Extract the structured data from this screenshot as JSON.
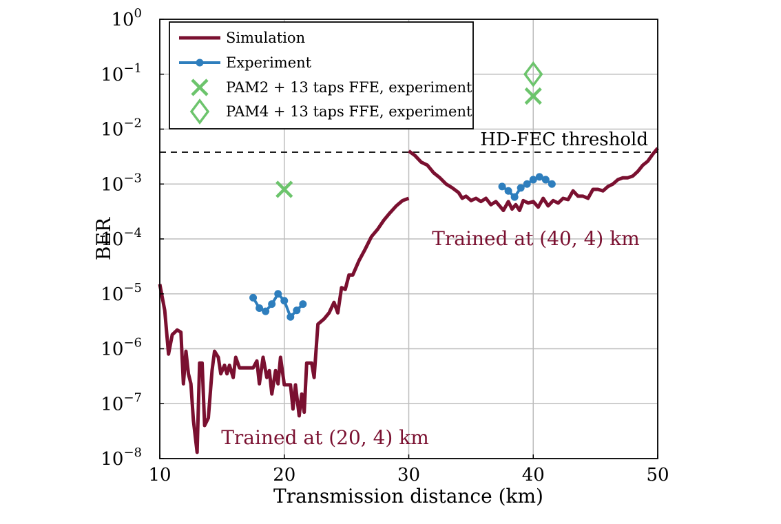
{
  "chart_data": {
    "type": "line",
    "xlabel": "Transmission distance (km)",
    "ylabel": "BER",
    "xlim": [
      10,
      50
    ],
    "ylim": [
      1e-08,
      1
    ],
    "yscale": "log",
    "grid": true,
    "legend_position": "top-left",
    "x_ticks": [
      "10",
      "20",
      "30",
      "40",
      "50"
    ],
    "y_ticks": [
      {
        "base": "10",
        "exp": "0"
      },
      {
        "base": "10",
        "exp": "−1"
      },
      {
        "base": "10",
        "exp": "−2"
      },
      {
        "base": "10",
        "exp": "−3"
      },
      {
        "base": "10",
        "exp": "−4"
      },
      {
        "base": "10",
        "exp": "−5"
      },
      {
        "base": "10",
        "exp": "−6"
      },
      {
        "base": "10",
        "exp": "−7"
      },
      {
        "base": "10",
        "exp": "−8"
      }
    ],
    "threshold": {
      "label": "HD-FEC threshold",
      "value": 0.0038
    },
    "annotations": [
      {
        "text": "Trained at (20, 4) km"
      },
      {
        "text": "Trained at (40, 4) km"
      }
    ],
    "series": [
      {
        "name": "Simulation",
        "color": "#7a1030",
        "style": "line",
        "segments": [
          [
            [
              10.0,
              1.5e-05
            ],
            [
              10.4,
              5e-06
            ],
            [
              10.7,
              8e-07
            ],
            [
              11.0,
              1.8e-06
            ],
            [
              11.4,
              2.2e-06
            ],
            [
              11.7,
              2e-06
            ],
            [
              11.9,
              2.3e-07
            ],
            [
              12.1,
              9e-07
            ],
            [
              12.3,
              3.5e-07
            ],
            [
              12.5,
              2.3e-07
            ],
            [
              12.7,
              5e-08
            ],
            [
              13.0,
              1.3e-08
            ],
            [
              13.2,
              5.5e-07
            ],
            [
              13.4,
              5.5e-07
            ],
            [
              13.6,
              4e-08
            ],
            [
              13.9,
              5.5e-08
            ],
            [
              14.2,
              4e-07
            ],
            [
              14.4,
              9e-07
            ],
            [
              14.7,
              7e-07
            ],
            [
              14.9,
              3.5e-07
            ],
            [
              15.2,
              5e-07
            ],
            [
              15.4,
              3.5e-07
            ],
            [
              15.6,
              5e-07
            ],
            [
              15.9,
              3e-07
            ],
            [
              16.1,
              7e-07
            ],
            [
              16.4,
              4.5e-07
            ],
            [
              17.5,
              4.5e-07
            ],
            [
              17.8,
              6e-07
            ],
            [
              18.0,
              2.3e-07
            ],
            [
              18.3,
              7e-07
            ],
            [
              18.6,
              3e-07
            ],
            [
              18.8,
              4e-07
            ],
            [
              19.0,
              1.5e-07
            ],
            [
              19.3,
              4e-07
            ],
            [
              19.5,
              2.3e-07
            ],
            [
              19.7,
              7e-07
            ],
            [
              20.0,
              2.2e-07
            ],
            [
              20.5,
              2.2e-07
            ],
            [
              20.7,
              8e-08
            ],
            [
              20.9,
              2.2e-07
            ],
            [
              21.2,
              6e-08
            ],
            [
              21.4,
              1.5e-07
            ],
            [
              21.6,
              7e-08
            ],
            [
              21.8,
              5.5e-07
            ],
            [
              22.2,
              5.5e-07
            ],
            [
              22.4,
              3e-07
            ],
            [
              22.7,
              2.8e-06
            ],
            [
              23.2,
              3.5e-06
            ],
            [
              23.6,
              4.5e-06
            ],
            [
              24.0,
              7e-06
            ],
            [
              24.3,
              4.5e-06
            ],
            [
              24.6,
              1.3e-05
            ],
            [
              24.9,
              1.2e-05
            ],
            [
              25.2,
              2.2e-05
            ],
            [
              25.5,
              2.2e-05
            ],
            [
              26.0,
              4e-05
            ],
            [
              26.5,
              6.5e-05
            ],
            [
              27.0,
              0.00011
            ],
            [
              27.5,
              0.00015
            ],
            [
              28.0,
              0.00022
            ],
            [
              28.5,
              0.0003
            ],
            [
              29.0,
              0.0004
            ],
            [
              29.5,
              0.0005
            ],
            [
              30.0,
              0.00055
            ]
          ],
          [
            [
              30.0,
              0.004
            ],
            [
              30.5,
              0.0033
            ],
            [
              31.0,
              0.0025
            ],
            [
              31.5,
              0.0022
            ],
            [
              32.0,
              0.0016
            ],
            [
              32.5,
              0.0013
            ],
            [
              33.0,
              0.001
            ],
            [
              33.5,
              0.00085
            ],
            [
              34.0,
              0.0007
            ],
            [
              34.3,
              0.00055
            ],
            [
              34.6,
              0.0006
            ],
            [
              35.0,
              0.0005
            ],
            [
              35.4,
              0.00055
            ],
            [
              35.8,
              0.00048
            ],
            [
              36.2,
              0.00055
            ],
            [
              36.6,
              0.00042
            ],
            [
              37.0,
              0.00048
            ],
            [
              37.3,
              0.0004
            ],
            [
              37.6,
              0.00033
            ],
            [
              38.0,
              0.00048
            ],
            [
              38.3,
              0.00035
            ],
            [
              38.6,
              0.00042
            ],
            [
              38.9,
              0.00033
            ],
            [
              39.2,
              0.0005
            ],
            [
              39.6,
              0.00045
            ],
            [
              40.0,
              0.00048
            ],
            [
              40.4,
              0.00038
            ],
            [
              40.8,
              0.00055
            ],
            [
              41.2,
              0.0004
            ],
            [
              41.6,
              0.0005
            ],
            [
              42.0,
              0.00045
            ],
            [
              42.4,
              0.00055
            ],
            [
              42.8,
              0.00052
            ],
            [
              43.2,
              0.00075
            ],
            [
              43.6,
              0.0006
            ],
            [
              44.0,
              0.0006
            ],
            [
              44.4,
              0.00055
            ],
            [
              44.8,
              0.0008
            ],
            [
              45.2,
              0.0008
            ],
            [
              45.6,
              0.00075
            ],
            [
              46.0,
              0.0009
            ],
            [
              46.4,
              0.001
            ],
            [
              46.8,
              0.0012
            ],
            [
              47.2,
              0.0013
            ],
            [
              47.6,
              0.0013
            ],
            [
              48.0,
              0.0014
            ],
            [
              48.4,
              0.0017
            ],
            [
              48.8,
              0.0022
            ],
            [
              49.2,
              0.0026
            ],
            [
              49.6,
              0.0035
            ],
            [
              50.0,
              0.0045
            ]
          ]
        ]
      },
      {
        "name": "Experiment",
        "color": "#2e7ebd",
        "style": "line-marker",
        "segments": [
          [
            [
              17.5,
              8.5e-06
            ],
            [
              18.0,
              5.5e-06
            ],
            [
              18.5,
              4.8e-06
            ],
            [
              19.0,
              6.5e-06
            ],
            [
              19.5,
              1e-05
            ],
            [
              20.0,
              7.5e-06
            ],
            [
              20.5,
              3.8e-06
            ],
            [
              21.0,
              5e-06
            ],
            [
              21.5,
              6.5e-06
            ]
          ],
          [
            [
              37.5,
              0.0009
            ],
            [
              38.0,
              0.00075
            ],
            [
              38.5,
              0.00058
            ],
            [
              39.0,
              0.00085
            ],
            [
              39.5,
              0.001
            ],
            [
              40.0,
              0.0012
            ],
            [
              40.5,
              0.00135
            ],
            [
              41.0,
              0.0012
            ],
            [
              41.5,
              0.001
            ]
          ]
        ]
      },
      {
        "name": "PAM2 + 13 taps FFE, experiment",
        "color": "#6cc46c",
        "style": "cross",
        "points": [
          [
            20.0,
            0.0008
          ],
          [
            40.0,
            0.04
          ]
        ]
      },
      {
        "name": "PAM4 + 13 taps FFE, experiment",
        "color": "#6cc46c",
        "style": "diamond",
        "points": [
          [
            40.0,
            0.1
          ]
        ]
      }
    ]
  }
}
